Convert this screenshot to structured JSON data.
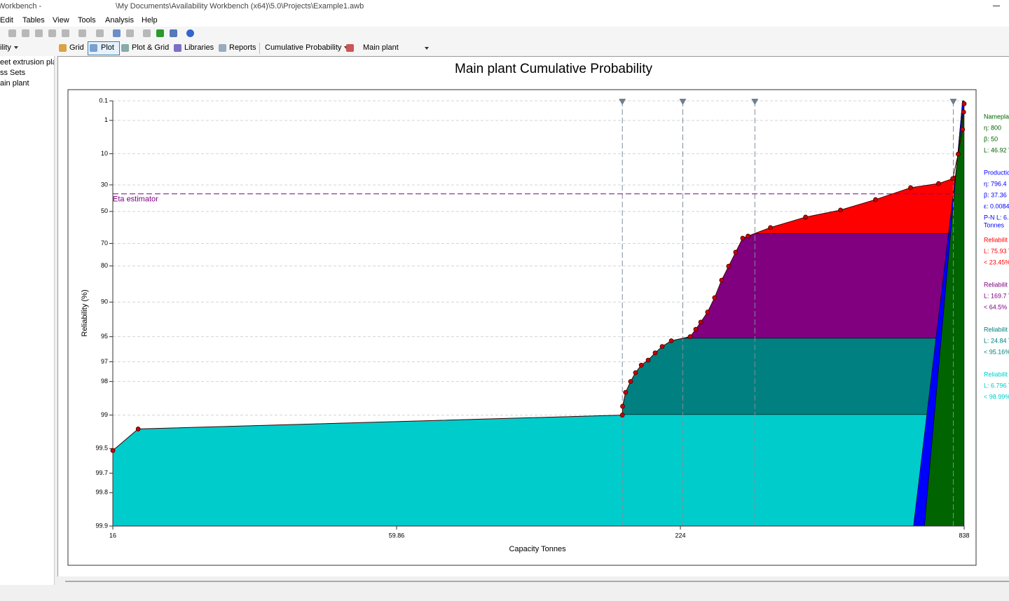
{
  "window": {
    "title": "Workbench -",
    "path": "\\My Documents\\Availability Workbench (x64)\\5.0\\Projects\\Example1.awb"
  },
  "menu": [
    "Edit",
    "Tables",
    "View",
    "Tools",
    "Analysis",
    "Help"
  ],
  "sidebar": {
    "dropdown": "ility",
    "items": [
      "eet extrusion plant",
      "ss Sets",
      "ain plant"
    ]
  },
  "tabs": [
    "Grid",
    "Plot",
    "Plot & Grid",
    "Libraries",
    "Reports"
  ],
  "plot_type": "Cumulative Probability",
  "plot_selector": "Main plant",
  "chart_data": {
    "type": "line",
    "title": "Main plant Cumulative Probability",
    "x_label": "Capacity Tonnes",
    "y_label": "Reliability (%)",
    "x_scale": "log",
    "y_scale": "weibull",
    "xlim": [
      16,
      838
    ],
    "xticks": [
      16,
      59.86,
      224,
      838
    ],
    "ylim": [
      0.1,
      99.9
    ],
    "yticks": [
      0.1,
      1,
      10,
      30,
      50,
      70,
      80,
      90,
      95,
      97,
      98,
      99,
      99.5,
      99.7,
      99.8,
      99.9
    ],
    "grid": true,
    "series": [
      {
        "color": "#cc0000",
        "x": [
          16,
          18,
          171,
          171.2,
          173.6,
          177.7,
          181.8,
          186.7,
          192.8,
          199.2,
          205.8,
          214.7,
          234.4,
          240.6,
          246.2,
          254.2,
          262.6,
          271.3,
          280.3,
          289.6,
          299.2,
          306.8,
          340.5,
          400.8,
          471.7,
          555,
          653.3,
          744,
          794.5,
          815,
          832,
          836,
          838
        ],
        "values": [
          99.52,
          99.25,
          99.0,
          98.8,
          98.4,
          98.0,
          97.6,
          97.2,
          96.9,
          96.4,
          95.9,
          95.4,
          95.0,
          94.2,
          93.3,
          91.8,
          89.1,
          84.7,
          80.1,
          74.3,
          67.2,
          66,
          60.9,
          54,
          49,
          41.2,
          32.1,
          29,
          25.4,
          10.2,
          2.2,
          0.42,
          0.15
        ]
      }
    ],
    "fits": [
      {
        "name": "Namepla",
        "color": "#006400",
        "eta": {
          "value": 800,
          "label": "η: 800"
        },
        "beta": {
          "value": 50,
          "label": "β: 50"
        },
        "extra": [
          "L: 46.92 T"
        ]
      },
      {
        "name": "Productio",
        "color": "#0000ff",
        "eta": {
          "value": 796.4,
          "label": "η: 796.4"
        },
        "beta": {
          "value": 37.36,
          "label": "β: 37.36"
        },
        "extra": [
          "ε: 0.0084",
          "P-N L: 6.",
          "Tonnes"
        ]
      }
    ],
    "bands": [
      {
        "name": "Reliabilit",
        "color": "#ff0000",
        "life": "L: 75.93 T",
        "limit": {
          "value": 23.45,
          "label": "< 23.45%"
        }
      },
      {
        "name": "Reliabilit",
        "color": "#800080",
        "life": "L: 169.7 T",
        "limit": {
          "value": 64.5,
          "label": "< 64.5%"
        }
      },
      {
        "name": "Reliabilit",
        "color": "#008080",
        "life": "L: 24.84 T",
        "limit": {
          "value": 95.16,
          "label": "< 95.16%"
        }
      },
      {
        "name": "Reliabilit",
        "color": "#00cccc",
        "life": "L: 6.796 T",
        "limit": {
          "value": 98.99,
          "label": "< 98.99%"
        }
      }
    ],
    "eta_estimator": {
      "value": 36.79,
      "label": "Eta estimator"
    }
  }
}
